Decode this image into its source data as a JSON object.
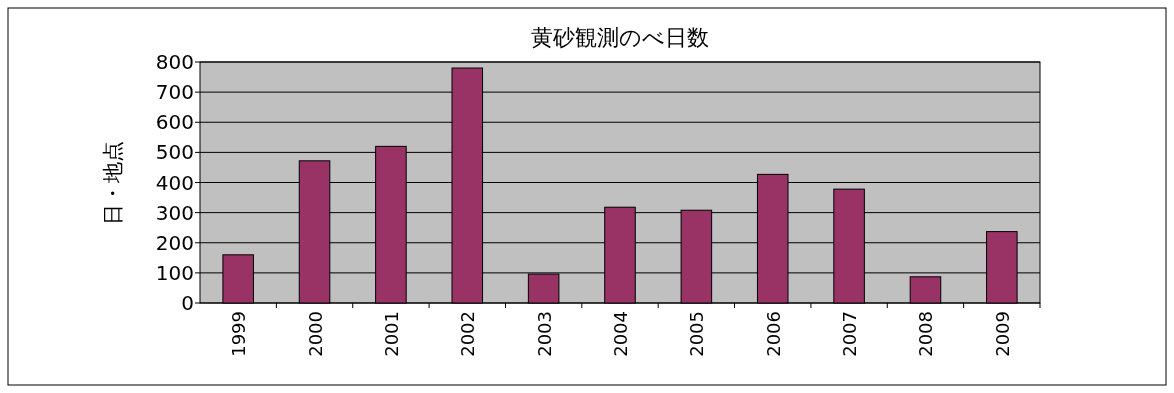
{
  "chart_data": {
    "type": "bar",
    "title": "黄砂観測のべ日数",
    "ylabel": "日・地点",
    "categories": [
      "1999",
      "2000",
      "2001",
      "2002",
      "2003",
      "2004",
      "2005",
      "2006",
      "2007",
      "2008",
      "2009"
    ],
    "values": [
      160,
      472,
      520,
      780,
      96,
      318,
      308,
      427,
      378,
      87,
      237
    ],
    "color": "#993366",
    "ylim": [
      0,
      800
    ],
    "yticks": [
      0,
      100,
      200,
      300,
      400,
      500,
      600,
      700,
      800
    ],
    "grid": "y"
  }
}
